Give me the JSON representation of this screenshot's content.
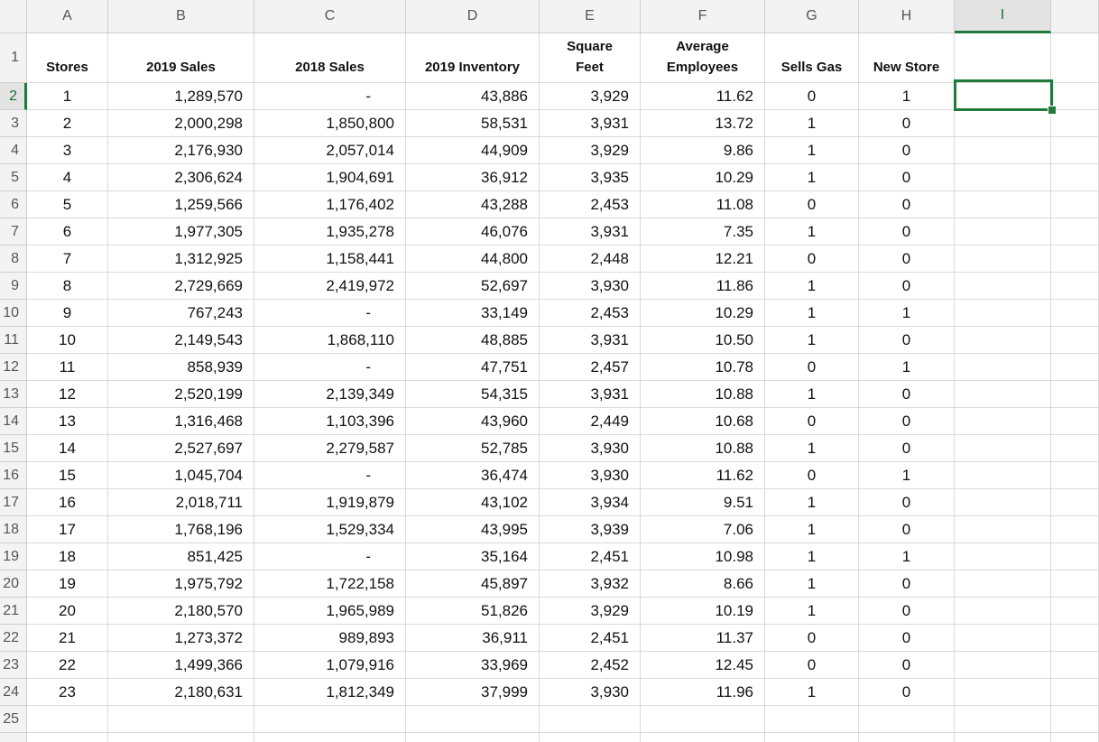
{
  "columns": [
    "A",
    "B",
    "C",
    "D",
    "E",
    "F",
    "G",
    "H",
    "I"
  ],
  "row_numbers": [
    "1",
    "2",
    "3",
    "4",
    "5",
    "6",
    "7",
    "8",
    "9",
    "10",
    "11",
    "12",
    "13",
    "14",
    "15",
    "16",
    "17",
    "18",
    "19",
    "20",
    "21",
    "22",
    "23",
    "24",
    "25"
  ],
  "table": {
    "header": [
      "Stores",
      "2019 Sales",
      "2018 Sales",
      "2019 Inventory",
      "Square Feet",
      "Average Employees",
      "Sells Gas",
      "New Store"
    ],
    "rows": [
      [
        "1",
        "1,289,570",
        "-",
        "43,886",
        "3,929",
        "11.62",
        "0",
        "1"
      ],
      [
        "2",
        "2,000,298",
        "1,850,800",
        "58,531",
        "3,931",
        "13.72",
        "1",
        "0"
      ],
      [
        "3",
        "2,176,930",
        "2,057,014",
        "44,909",
        "3,929",
        "9.86",
        "1",
        "0"
      ],
      [
        "4",
        "2,306,624",
        "1,904,691",
        "36,912",
        "3,935",
        "10.29",
        "1",
        "0"
      ],
      [
        "5",
        "1,259,566",
        "1,176,402",
        "43,288",
        "2,453",
        "11.08",
        "0",
        "0"
      ],
      [
        "6",
        "1,977,305",
        "1,935,278",
        "46,076",
        "3,931",
        "7.35",
        "1",
        "0"
      ],
      [
        "7",
        "1,312,925",
        "1,158,441",
        "44,800",
        "2,448",
        "12.21",
        "0",
        "0"
      ],
      [
        "8",
        "2,729,669",
        "2,419,972",
        "52,697",
        "3,930",
        "11.86",
        "1",
        "0"
      ],
      [
        "9",
        "767,243",
        "-",
        "33,149",
        "2,453",
        "10.29",
        "1",
        "1"
      ],
      [
        "10",
        "2,149,543",
        "1,868,110",
        "48,885",
        "3,931",
        "10.50",
        "1",
        "0"
      ],
      [
        "11",
        "858,939",
        "-",
        "47,751",
        "2,457",
        "10.78",
        "0",
        "1"
      ],
      [
        "12",
        "2,520,199",
        "2,139,349",
        "54,315",
        "3,931",
        "10.88",
        "1",
        "0"
      ],
      [
        "13",
        "1,316,468",
        "1,103,396",
        "43,960",
        "2,449",
        "10.68",
        "0",
        "0"
      ],
      [
        "14",
        "2,527,697",
        "2,279,587",
        "52,785",
        "3,930",
        "10.88",
        "1",
        "0"
      ],
      [
        "15",
        "1,045,704",
        "-",
        "36,474",
        "3,930",
        "11.62",
        "0",
        "1"
      ],
      [
        "16",
        "2,018,711",
        "1,919,879",
        "43,102",
        "3,934",
        "9.51",
        "1",
        "0"
      ],
      [
        "17",
        "1,768,196",
        "1,529,334",
        "43,995",
        "3,939",
        "7.06",
        "1",
        "0"
      ],
      [
        "18",
        "851,425",
        "-",
        "35,164",
        "2,451",
        "10.98",
        "1",
        "1"
      ],
      [
        "19",
        "1,975,792",
        "1,722,158",
        "45,897",
        "3,932",
        "8.66",
        "1",
        "0"
      ],
      [
        "20",
        "2,180,570",
        "1,965,989",
        "51,826",
        "3,929",
        "10.19",
        "1",
        "0"
      ],
      [
        "21",
        "1,273,372",
        "989,893",
        "36,911",
        "2,451",
        "11.37",
        "0",
        "0"
      ],
      [
        "22",
        "1,499,366",
        "1,079,916",
        "33,969",
        "2,452",
        "12.45",
        "0",
        "0"
      ],
      [
        "23",
        "2,180,631",
        "1,812,349",
        "37,999",
        "3,930",
        "11.96",
        "1",
        "0"
      ]
    ]
  }
}
